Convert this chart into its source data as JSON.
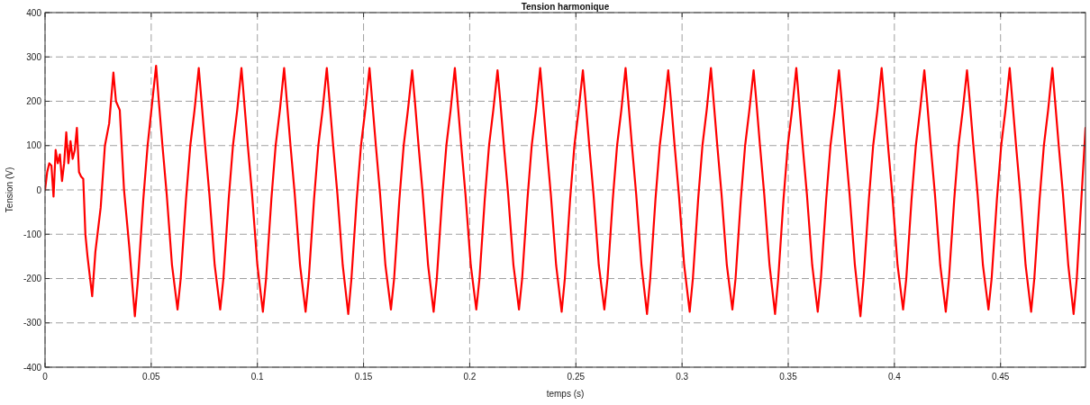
{
  "chart_data": {
    "type": "line",
    "title": "Tension harmonique",
    "xlabel": "temps (s)",
    "ylabel": "Tension (V)",
    "xlim": [
      0,
      0.49
    ],
    "ylim": [
      -400,
      400
    ],
    "xticks": [
      0,
      0.05,
      0.1,
      0.15,
      0.2,
      0.25,
      0.3,
      0.35,
      0.4,
      0.45
    ],
    "yticks": [
      -400,
      -300,
      -200,
      -100,
      0,
      100,
      200,
      300,
      400
    ],
    "grid": true,
    "line_style": "solid",
    "marker": "none",
    "series": [
      {
        "color": "#ff0000",
        "x": [
          0,
          0.001,
          0.002,
          0.003,
          0.004,
          0.005,
          0.006,
          0.007,
          0.008,
          0.009,
          0.01,
          0.011,
          0.012,
          0.013,
          0.014,
          0.015,
          0.016,
          0.017,
          0.018,
          0.019,
          0.02,
          0.0222,
          0.0237,
          0.0262,
          0.0282,
          0.0302,
          0.0322,
          0.0334,
          0.0352,
          0.0372,
          0.0397,
          0.0423,
          0.0438,
          0.0463,
          0.0483,
          0.0503,
          0.0523,
          0.0535,
          0.0553,
          0.0573,
          0.0598,
          0.0624,
          0.0639,
          0.0664,
          0.0684,
          0.0704,
          0.0724,
          0.0736,
          0.0754,
          0.0774,
          0.0799,
          0.0825,
          0.084,
          0.0865,
          0.0885,
          0.0905,
          0.0925,
          0.0937,
          0.0955,
          0.0975,
          0.1,
          0.1026,
          0.1041,
          0.1066,
          0.1086,
          0.1106,
          0.1126,
          0.1138,
          0.1156,
          0.1176,
          0.1201,
          0.1227,
          0.1242,
          0.1267,
          0.1287,
          0.1307,
          0.1327,
          0.1339,
          0.1357,
          0.1377,
          0.1402,
          0.1428,
          0.1443,
          0.1468,
          0.1488,
          0.1508,
          0.1528,
          0.154,
          0.1558,
          0.1578,
          0.1603,
          0.1629,
          0.1644,
          0.1669,
          0.1689,
          0.1709,
          0.1729,
          0.1741,
          0.1759,
          0.1779,
          0.1804,
          0.183,
          0.1845,
          0.187,
          0.189,
          0.191,
          0.193,
          0.1942,
          0.196,
          0.198,
          0.2005,
          0.2031,
          0.2046,
          0.2071,
          0.2091,
          0.2111,
          0.2131,
          0.2143,
          0.2161,
          0.2181,
          0.2206,
          0.2232,
          0.2247,
          0.2272,
          0.2292,
          0.2312,
          0.2332,
          0.2344,
          0.2362,
          0.2382,
          0.2407,
          0.2433,
          0.2448,
          0.2473,
          0.2493,
          0.2513,
          0.2533,
          0.2545,
          0.2563,
          0.2583,
          0.2608,
          0.2634,
          0.2649,
          0.2674,
          0.2694,
          0.2714,
          0.2734,
          0.2746,
          0.2764,
          0.2784,
          0.2809,
          0.2835,
          0.285,
          0.2875,
          0.2895,
          0.2915,
          0.2935,
          0.2947,
          0.2965,
          0.2985,
          0.301,
          0.3036,
          0.3051,
          0.3076,
          0.3096,
          0.3116,
          0.3136,
          0.3148,
          0.3166,
          0.3186,
          0.3211,
          0.3237,
          0.3252,
          0.3277,
          0.3297,
          0.3317,
          0.3337,
          0.3349,
          0.3367,
          0.3387,
          0.3412,
          0.3438,
          0.3453,
          0.3478,
          0.3498,
          0.3518,
          0.3538,
          0.355,
          0.3568,
          0.3588,
          0.3613,
          0.3639,
          0.3654,
          0.3679,
          0.3699,
          0.3719,
          0.3739,
          0.3751,
          0.3769,
          0.3789,
          0.3814,
          0.384,
          0.3855,
          0.388,
          0.39,
          0.392,
          0.394,
          0.3952,
          0.397,
          0.399,
          0.4015,
          0.4041,
          0.4056,
          0.4081,
          0.4101,
          0.4121,
          0.4141,
          0.4153,
          0.4171,
          0.4191,
          0.4216,
          0.4242,
          0.4257,
          0.4282,
          0.4302,
          0.4322,
          0.4342,
          0.4354,
          0.4372,
          0.4392,
          0.4417,
          0.4443,
          0.4458,
          0.4483,
          0.4503,
          0.4523,
          0.4543,
          0.4555,
          0.4573,
          0.4593,
          0.4618,
          0.4644,
          0.4659,
          0.4684,
          0.4704,
          0.4724,
          0.4744,
          0.4756,
          0.4774,
          0.4794,
          0.4819,
          0.4844,
          0.4859,
          0.49
        ],
        "values": [
          0,
          40,
          60,
          55,
          -15,
          90,
          60,
          80,
          20,
          60,
          130,
          60,
          110,
          70,
          90,
          140,
          40,
          30,
          25,
          -100,
          -150,
          -240,
          -140,
          -40,
          100,
          150,
          265,
          200,
          180,
          0,
          -130,
          -285,
          -200,
          -20,
          100,
          190,
          280,
          205,
          100,
          -10,
          -170,
          -270,
          -200,
          -20,
          100,
          180,
          275,
          205,
          100,
          -10,
          -170,
          -270,
          -200,
          -20,
          100,
          180,
          275,
          205,
          100,
          -10,
          -170,
          -275,
          -200,
          -20,
          100,
          180,
          275,
          205,
          100,
          -10,
          -170,
          -275,
          -200,
          -20,
          100,
          180,
          275,
          205,
          100,
          -10,
          -170,
          -280,
          -200,
          -20,
          100,
          180,
          275,
          205,
          100,
          -10,
          -170,
          -270,
          -200,
          -20,
          100,
          180,
          270,
          205,
          100,
          -10,
          -170,
          -275,
          -200,
          -20,
          100,
          180,
          275,
          205,
          100,
          -10,
          -170,
          -270,
          -200,
          -20,
          100,
          180,
          270,
          205,
          100,
          -10,
          -170,
          -270,
          -200,
          -20,
          100,
          180,
          275,
          205,
          100,
          -10,
          -170,
          -275,
          -200,
          -20,
          100,
          180,
          270,
          205,
          100,
          -10,
          -170,
          -270,
          -200,
          -20,
          100,
          180,
          275,
          205,
          100,
          -10,
          -170,
          -280,
          -200,
          -20,
          100,
          180,
          270,
          205,
          100,
          -10,
          -170,
          -275,
          -200,
          -20,
          100,
          180,
          275,
          205,
          100,
          -10,
          -170,
          -270,
          -200,
          -20,
          100,
          180,
          270,
          205,
          100,
          -10,
          -170,
          -280,
          -200,
          -20,
          100,
          180,
          275,
          205,
          100,
          -10,
          -170,
          -275,
          -200,
          -20,
          100,
          180,
          270,
          205,
          100,
          -10,
          -170,
          -285,
          -200,
          -20,
          100,
          180,
          275,
          205,
          100,
          -10,
          -170,
          -270,
          -200,
          -20,
          100,
          180,
          270,
          205,
          100,
          -10,
          -170,
          -275,
          -200,
          -20,
          100,
          180,
          270,
          205,
          100,
          -10,
          -170,
          -270,
          -200,
          -20,
          100,
          180,
          275,
          205,
          100,
          -10,
          -170,
          -275,
          -200,
          -20,
          100,
          180,
          275,
          205,
          100,
          -10,
          -170,
          -280,
          -200,
          140
        ]
      }
    ]
  }
}
